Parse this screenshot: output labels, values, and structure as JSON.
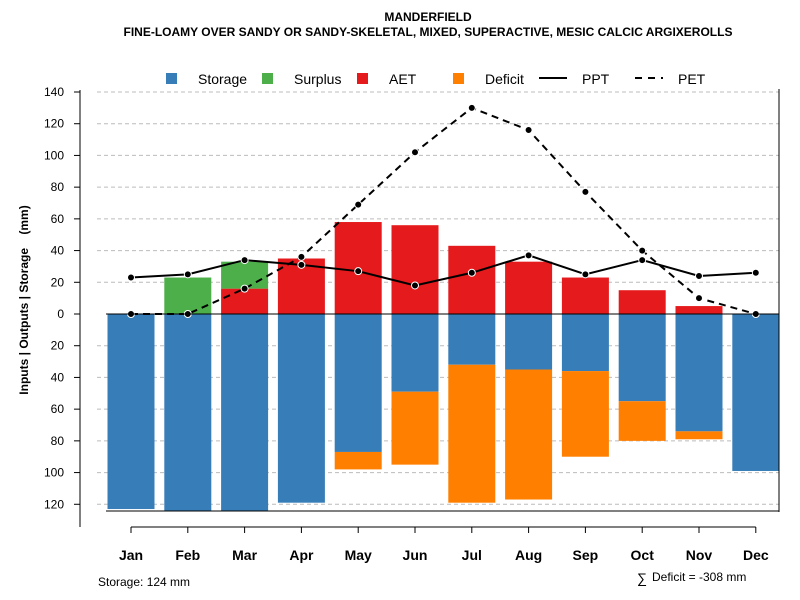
{
  "chart_data": {
    "type": "bar",
    "title": "MANDERFIELD",
    "subtitle": "FINE-LOAMY OVER SANDY OR SANDY-SKELETAL, MIXED, SUPERACTIVE, MESIC CALCIC ARGIXEROLLS",
    "ylabel": "Inputs | Outputs | Storage    (mm)",
    "ylim": [
      -124,
      140
    ],
    "yticks": [
      140,
      120,
      100,
      80,
      60,
      40,
      20,
      0,
      -20,
      -40,
      -60,
      -80,
      -100,
      -120
    ],
    "ytick_labels": [
      "140",
      "120",
      "100",
      "80",
      "60",
      "40",
      "20",
      "0",
      "20",
      "40",
      "60",
      "80",
      "100",
      "120"
    ],
    "categories": [
      "Jan",
      "Feb",
      "Mar",
      "Apr",
      "May",
      "Jun",
      "Jul",
      "Aug",
      "Sep",
      "Oct",
      "Nov",
      "Dec"
    ],
    "legend": [
      "Storage",
      "Surplus",
      "AET",
      "Deficit",
      "PPT",
      "PET"
    ],
    "colors": {
      "Storage": "#377eb8",
      "Surplus": "#4daf4a",
      "AET": "#e41a1c",
      "Deficit": "#ff7f00",
      "line": "#000000"
    },
    "series": [
      {
        "name": "AET",
        "values": [
          0,
          0,
          16,
          35,
          58,
          56,
          43,
          33,
          23,
          15,
          5,
          0
        ]
      },
      {
        "name": "Surplus",
        "values": [
          0,
          23,
          17,
          0,
          0,
          0,
          0,
          0,
          0,
          0,
          0,
          0
        ]
      },
      {
        "name": "Storage",
        "values": [
          -123,
          -124,
          -124,
          -119,
          -87,
          -49,
          -32,
          -35,
          -36,
          -55,
          -74,
          -99
        ]
      },
      {
        "name": "Deficit",
        "values": [
          0,
          0,
          0,
          0,
          -11,
          -46,
          -87,
          -82,
          -54,
          -25,
          -5,
          0
        ]
      },
      {
        "name": "PPT",
        "values": [
          23,
          25,
          34,
          31,
          27,
          18,
          26,
          37,
          25,
          34,
          24,
          26
        ]
      },
      {
        "name": "PET",
        "values": [
          0,
          0,
          16,
          36,
          69,
          102,
          130,
          116,
          77,
          40,
          10,
          0
        ]
      }
    ],
    "footer_left": "Storage: 124 mm",
    "footer_right": "Deficit = -308 mm",
    "footer_right_symbol": "∑"
  }
}
